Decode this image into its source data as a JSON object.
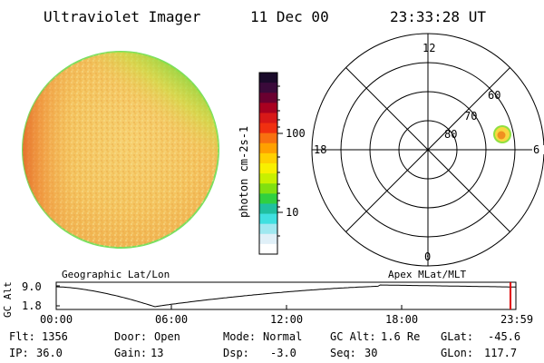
{
  "header": {
    "instrument": "Ultraviolet Imager",
    "date": "11 Dec 00",
    "time": "23:33:28 UT"
  },
  "colorbar": {
    "label": "photon cm-2s-1",
    "ticks": [
      "100",
      "10"
    ],
    "colors_top_to_bottom": [
      "#1a0a2a",
      "#3a0a3a",
      "#6a0030",
      "#a80020",
      "#d81818",
      "#f03010",
      "#f87010",
      "#ffa000",
      "#ffd000",
      "#f8f000",
      "#c8f000",
      "#80e010",
      "#30d040",
      "#20c0a0",
      "#40e0e0",
      "#a0e8f0",
      "#e0f0f8",
      "#ffffff"
    ]
  },
  "polar": {
    "mlt_labels": [
      "12",
      "18",
      "6",
      "0"
    ],
    "mlat_labels": [
      "60",
      "70",
      "80"
    ]
  },
  "altitude_plot": {
    "ylabel": "GC Alt",
    "yticks": [
      "9.0",
      "1.8"
    ],
    "left_title": "Geographic Lat/Lon",
    "right_title": "Apex MLat/MLT",
    "xticks": [
      "00:00",
      "06:00",
      "12:00",
      "18:00",
      "23:59"
    ]
  },
  "status": {
    "row1": {
      "flt_label": "Flt:",
      "flt_value": "1356",
      "door_label": "Door:",
      "door_value": "Open",
      "mode_label": "Mode:",
      "mode_value": "Normal",
      "gcalt_label": "GC Alt:",
      "gcalt_value": "1.6 Re",
      "glat_label": "GLat:",
      "glat_value": "-45.6"
    },
    "row2": {
      "ip_label": "IP:",
      "ip_value": "36.0",
      "gain_label": "Gain:",
      "gain_value": "13",
      "dsp_label": "Dsp:",
      "dsp_value": "-3.0",
      "seq_label": "Seq:",
      "seq_value": "30",
      "glon_label": "GLon:",
      "glon_value": "117.7"
    }
  },
  "colors": {
    "disk_base": "#f4c860",
    "disk_edge": "#90e040",
    "disk_hot": "#e86020",
    "spot": "#f0a020"
  }
}
